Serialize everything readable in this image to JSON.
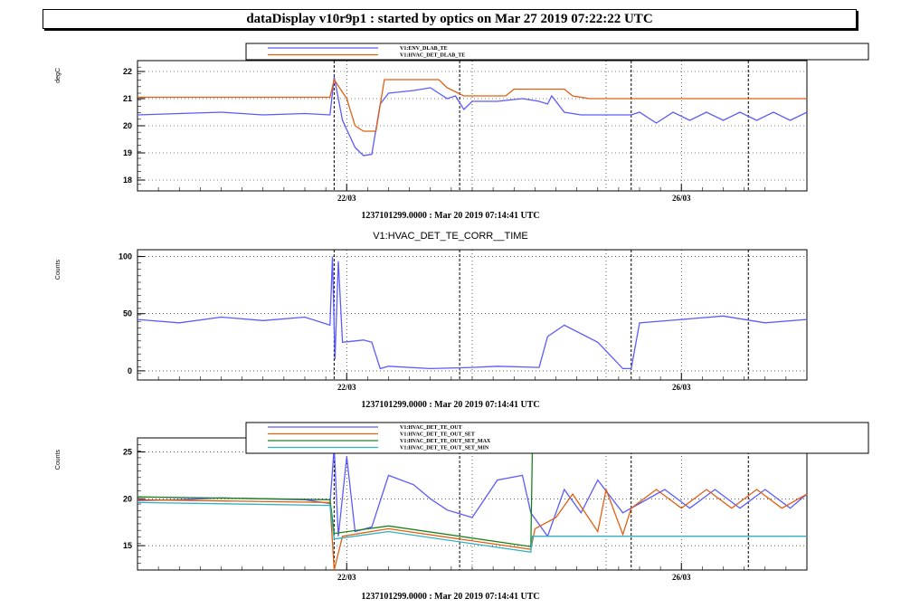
{
  "window_title": "dataDisplay v10r9p1 : started by optics on Mar 27 2019 07:22:22 UTC",
  "chart_data": [
    {
      "type": "line",
      "ylabel": "degC",
      "ylim": [
        17.6,
        22.4
      ],
      "yticks": [
        "18",
        "19",
        "20",
        "21",
        "22"
      ],
      "xticks": [
        "22/03",
        "26/03"
      ],
      "xlabel": "1237101299.0000 : Mar 20 2019 07:14:41 UTC",
      "legend": "top-right",
      "grid": true,
      "x_day_range": [
        0,
        8.0
      ],
      "series": [
        {
          "name": "V1:ENV_DLAB_TE",
          "color": "#5b5bff",
          "points": [
            [
              0,
              20.4
            ],
            [
              0.5,
              20.45
            ],
            [
              1.0,
              20.5
            ],
            [
              1.5,
              20.4
            ],
            [
              2.0,
              20.45
            ],
            [
              2.3,
              20.4
            ],
            [
              2.35,
              21.8
            ],
            [
              2.45,
              20.2
            ],
            [
              2.6,
              19.2
            ],
            [
              2.7,
              18.9
            ],
            [
              2.8,
              18.95
            ],
            [
              2.9,
              20.8
            ],
            [
              3.0,
              21.2
            ],
            [
              3.3,
              21.3
            ],
            [
              3.5,
              21.4
            ],
            [
              3.7,
              21.0
            ],
            [
              3.8,
              21.1
            ],
            [
              3.9,
              20.6
            ],
            [
              4.0,
              20.9
            ],
            [
              4.3,
              20.9
            ],
            [
              4.6,
              21.0
            ],
            [
              4.8,
              20.9
            ],
            [
              4.9,
              20.8
            ],
            [
              4.95,
              21.1
            ],
            [
              5.1,
              20.5
            ],
            [
              5.3,
              20.4
            ],
            [
              5.6,
              20.4
            ],
            [
              5.9,
              20.4
            ],
            [
              6.0,
              20.5
            ],
            [
              6.2,
              20.1
            ],
            [
              6.4,
              20.5
            ],
            [
              6.6,
              20.2
            ],
            [
              6.8,
              20.5
            ],
            [
              7.0,
              20.2
            ],
            [
              7.2,
              20.5
            ],
            [
              7.4,
              20.2
            ],
            [
              7.6,
              20.5
            ],
            [
              7.8,
              20.2
            ],
            [
              8.0,
              20.5
            ]
          ]
        },
        {
          "name": "V1:HVAC_DET_DLAB_TE",
          "color": "#e06010",
          "points": [
            [
              0,
              21.05
            ],
            [
              2.3,
              21.05
            ],
            [
              2.35,
              21.7
            ],
            [
              2.5,
              21.0
            ],
            [
              2.6,
              20.0
            ],
            [
              2.7,
              19.8
            ],
            [
              2.85,
              19.8
            ],
            [
              2.95,
              21.7
            ],
            [
              3.6,
              21.7
            ],
            [
              3.7,
              21.4
            ],
            [
              3.9,
              21.1
            ],
            [
              4.4,
              21.1
            ],
            [
              4.5,
              21.35
            ],
            [
              5.1,
              21.35
            ],
            [
              5.2,
              21.1
            ],
            [
              5.4,
              21.0
            ],
            [
              8.0,
              21.0
            ]
          ]
        }
      ]
    },
    {
      "type": "line",
      "title": "V1:HVAC_DET_TE_CORR__TIME",
      "ylabel": "Counts",
      "ylim": [
        -8,
        106
      ],
      "yticks": [
        "0",
        "50",
        "100"
      ],
      "xticks": [
        "22/03",
        "26/03"
      ],
      "xlabel": "1237101299.0000 : Mar 20 2019 07:14:41 UTC",
      "grid": true,
      "x_day_range": [
        0,
        8.0
      ],
      "series": [
        {
          "name": "",
          "color": "#5b5bff",
          "points": [
            [
              0,
              45
            ],
            [
              0.5,
              42
            ],
            [
              1.0,
              47
            ],
            [
              1.5,
              44
            ],
            [
              2.0,
              47
            ],
            [
              2.3,
              40
            ],
            [
              2.33,
              100
            ],
            [
              2.36,
              10
            ],
            [
              2.4,
              96
            ],
            [
              2.45,
              25
            ],
            [
              2.7,
              27
            ],
            [
              2.8,
              25
            ],
            [
              2.9,
              2
            ],
            [
              3.0,
              4
            ],
            [
              3.5,
              2
            ],
            [
              4.0,
              3
            ],
            [
              4.3,
              4
            ],
            [
              4.8,
              3
            ],
            [
              4.9,
              30
            ],
            [
              5.1,
              40
            ],
            [
              5.5,
              25
            ],
            [
              5.8,
              2
            ],
            [
              5.9,
              2
            ],
            [
              6.0,
              42
            ],
            [
              6.5,
              45
            ],
            [
              7.0,
              48
            ],
            [
              7.5,
              42
            ],
            [
              8.0,
              45
            ]
          ]
        }
      ]
    },
    {
      "type": "line",
      "ylabel": "Counts",
      "ylim": [
        12.4,
        26.5
      ],
      "yticks": [
        "15",
        "20",
        "25"
      ],
      "xticks": [
        "22/03",
        "26/03"
      ],
      "xlabel": "1237101299.0000 : Mar 20 2019 07:14:41 UTC",
      "legend": "top-right",
      "grid": true,
      "x_day_range": [
        0,
        8.0
      ],
      "series": [
        {
          "name": "V1:HVAC_DET_TE_OUT",
          "color": "#5b5bff",
          "points": [
            [
              0,
              19.8
            ],
            [
              0.5,
              19.9
            ],
            [
              1.0,
              20.1
            ],
            [
              1.5,
              20.0
            ],
            [
              2.0,
              19.9
            ],
            [
              2.3,
              19.5
            ],
            [
              2.35,
              25.5
            ],
            [
              2.4,
              16.0
            ],
            [
              2.5,
              24.5
            ],
            [
              2.6,
              16.5
            ],
            [
              2.8,
              17.0
            ],
            [
              3.0,
              22.5
            ],
            [
              3.3,
              21.5
            ],
            [
              3.5,
              20.0
            ],
            [
              3.7,
              18.8
            ],
            [
              4.0,
              18.0
            ],
            [
              4.3,
              22.0
            ],
            [
              4.6,
              22.5
            ],
            [
              4.7,
              18.5
            ],
            [
              4.9,
              16.0
            ],
            [
              5.1,
              21.0
            ],
            [
              5.3,
              18.5
            ],
            [
              5.5,
              22.0
            ],
            [
              5.8,
              18.5
            ],
            [
              6.0,
              19.5
            ],
            [
              6.3,
              21.0
            ],
            [
              6.6,
              19.0
            ],
            [
              6.9,
              21.0
            ],
            [
              7.2,
              19.0
            ],
            [
              7.5,
              21.0
            ],
            [
              7.8,
              19.0
            ],
            [
              8.0,
              20.5
            ]
          ]
        },
        {
          "name": "V1:HVAC_DET_TE_OUT_SET",
          "color": "#e06010",
          "points": [
            [
              0,
              19.9
            ],
            [
              2.3,
              19.6
            ],
            [
              2.35,
              12.4
            ],
            [
              2.45,
              16.0
            ],
            [
              3.0,
              16.8
            ],
            [
              4.7,
              14.6
            ],
            [
              4.75,
              16.8
            ],
            [
              5.0,
              18.0
            ],
            [
              5.2,
              20.5
            ],
            [
              5.5,
              16.5
            ],
            [
              5.6,
              21.0
            ],
            [
              5.8,
              16.2
            ],
            [
              5.9,
              19.0
            ],
            [
              6.2,
              21.0
            ],
            [
              6.5,
              19.0
            ],
            [
              6.8,
              21.0
            ],
            [
              7.1,
              19.0
            ],
            [
              7.4,
              21.0
            ],
            [
              7.7,
              19.0
            ],
            [
              8.0,
              20.5
            ]
          ]
        },
        {
          "name": "V1:HVAC_DET_TE_OUT_SET_MAX",
          "color": "#208020",
          "points": [
            [
              0,
              20.2
            ],
            [
              2.3,
              19.9
            ],
            [
              2.35,
              16.3
            ],
            [
              3.0,
              17.1
            ],
            [
              4.7,
              14.9
            ],
            [
              4.72,
              26.0
            ],
            [
              8.0,
              26.0
            ]
          ]
        },
        {
          "name": "V1:HVAC_DET_TE_OUT_SET_MIN",
          "color": "#30b0c0",
          "points": [
            [
              0,
              19.6
            ],
            [
              2.3,
              19.3
            ],
            [
              2.35,
              15.7
            ],
            [
              3.0,
              16.5
            ],
            [
              4.7,
              14.3
            ],
            [
              4.72,
              16.0
            ],
            [
              8.0,
              16.0
            ]
          ]
        }
      ]
    }
  ]
}
